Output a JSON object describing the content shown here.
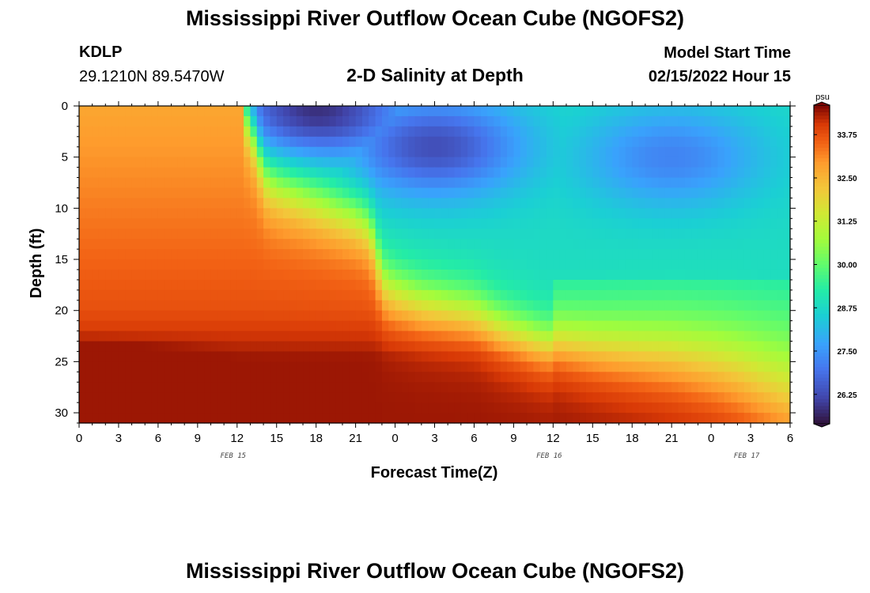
{
  "header": {
    "title": "Mississippi River Outflow Ocean Cube (NGOFS2)",
    "station": "KDLP",
    "coords": "29.1210N  89.5470W",
    "plot_title": "2-D Salinity at Depth",
    "model_start_label": "Model Start Time",
    "model_start_value": "02/15/2022 Hour 15"
  },
  "footer": {
    "title": "Mississippi River Outflow Ocean Cube (NGOFS2)"
  },
  "chart_data": {
    "type": "heatmap",
    "title": "2-D Salinity at Depth",
    "xlabel": "Forecast Time(Z)",
    "ylabel": "Depth (ft)",
    "x_range_hours": [
      0,
      54
    ],
    "x_ticks": [
      {
        "h": 0,
        "label": "0"
      },
      {
        "h": 3,
        "label": "3"
      },
      {
        "h": 6,
        "label": "6"
      },
      {
        "h": 9,
        "label": "9"
      },
      {
        "h": 12,
        "label": "12"
      },
      {
        "h": 15,
        "label": "15"
      },
      {
        "h": 18,
        "label": "18"
      },
      {
        "h": 21,
        "label": "21"
      },
      {
        "h": 24,
        "label": "0"
      },
      {
        "h": 27,
        "label": "3"
      },
      {
        "h": 30,
        "label": "6"
      },
      {
        "h": 33,
        "label": "9"
      },
      {
        "h": 36,
        "label": "12"
      },
      {
        "h": 39,
        "label": "15"
      },
      {
        "h": 42,
        "label": "18"
      },
      {
        "h": 45,
        "label": "21"
      },
      {
        "h": 48,
        "label": "0"
      },
      {
        "h": 51,
        "label": "3"
      },
      {
        "h": 54,
        "label": "6"
      }
    ],
    "date_labels": [
      {
        "h": 12,
        "label": "FEB 15"
      },
      {
        "h": 36,
        "label": "FEB 16"
      },
      {
        "h": 51,
        "label": "FEB 17"
      }
    ],
    "y_range": [
      0,
      31
    ],
    "y_ticks": [
      0,
      5,
      10,
      15,
      20,
      25,
      30
    ],
    "y_inverted": true,
    "colorbar": {
      "unit": "psu",
      "range": [
        25.4,
        34.6
      ],
      "labels": [
        "33.75",
        "32.50",
        "31.25",
        "30.00",
        "28.75",
        "27.50",
        "26.25"
      ],
      "label_values": [
        33.75,
        32.5,
        31.25,
        30.0,
        28.75,
        27.5,
        26.25
      ]
    },
    "halocline": {
      "time_hours": [
        12.5,
        13.5,
        14,
        15,
        17,
        19,
        21,
        22,
        22.5,
        23,
        24,
        26,
        28,
        30,
        32,
        35,
        37,
        39,
        42,
        45,
        48,
        50,
        52,
        54
      ],
      "depth_ft": [
        0,
        4,
        7,
        8,
        9,
        10,
        11,
        12,
        14,
        17,
        18,
        19,
        19.5,
        20,
        21.5,
        23,
        23.5,
        24,
        24.5,
        25,
        26,
        27,
        28.5,
        30
      ]
    },
    "fresh_cores": [
      {
        "h": 18,
        "d": 0.5,
        "psu": 25.8
      },
      {
        "h": 27,
        "d": 4,
        "psu": 26.3
      },
      {
        "h": 45,
        "d": 5,
        "psu": 27.2
      }
    ],
    "bottom_max_psu": 34.4
  }
}
